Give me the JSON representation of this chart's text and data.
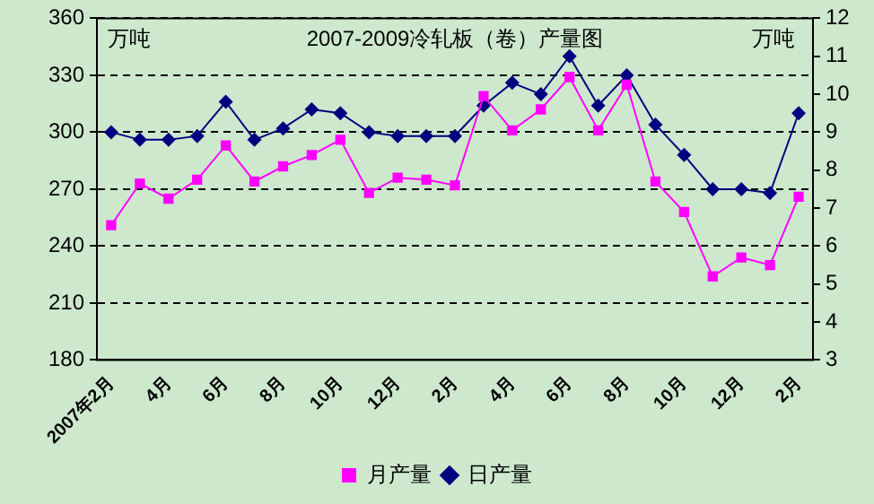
{
  "chart_data": {
    "type": "line",
    "title": "2007-2009冷轧板（卷）产量图",
    "ylabel": "万吨",
    "y2label": "万吨",
    "categories": [
      "2007年2月",
      null,
      "4月",
      null,
      "6月",
      null,
      "8月",
      null,
      "10月",
      null,
      "12月",
      null,
      "2月",
      null,
      "4月",
      null,
      "6月",
      null,
      "8月",
      null,
      "10月",
      null,
      "12月",
      null,
      "2月"
    ],
    "series": [
      {
        "name": "月产量",
        "color": "#ff00ff",
        "marker": "square",
        "values": [
          251,
          273,
          265,
          275,
          293,
          274,
          282,
          288,
          296,
          268,
          276,
          275,
          272,
          319,
          301,
          312,
          329,
          301,
          325,
          274,
          258,
          224,
          234,
          230,
          266
        ]
      },
      {
        "name": "日产量",
        "color": "#000080",
        "marker": "diamond",
        "axis": "y2",
        "values": [
          9.0,
          8.8,
          8.8,
          8.9,
          9.8,
          8.8,
          9.1,
          9.6,
          9.5,
          9.0,
          8.9,
          8.9,
          8.9,
          9.7,
          10.3,
          10.0,
          11.0,
          9.7,
          10.5,
          9.2,
          8.4,
          7.5,
          7.5,
          7.4,
          9.5
        ]
      }
    ],
    "ylim": [
      180,
      360
    ],
    "yticks": [
      180,
      210,
      240,
      270,
      300,
      330,
      360
    ],
    "y2lim": [
      3,
      12
    ],
    "y2ticks": [
      3,
      4,
      5,
      6,
      7,
      8,
      9,
      10,
      11,
      12
    ],
    "grid": "y",
    "legend": "bottom"
  }
}
